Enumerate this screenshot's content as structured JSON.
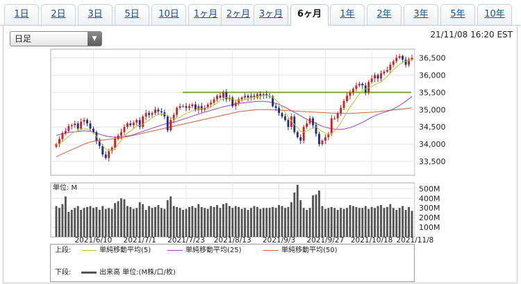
{
  "tabs": [
    "1日",
    "2日",
    "3日",
    "5日",
    "10日",
    "1ヶ月",
    "2ヶ月",
    "3ヶ月",
    "6ヶ月",
    "1年",
    "2年",
    "3年",
    "5年",
    "10年"
  ],
  "active_tab": "6ヶ月",
  "period_select": {
    "value": "日足"
  },
  "timestamp": "21/11/08 16:20 EST",
  "legend": {
    "upper_label": "上段:",
    "lower_label": "下段:",
    "ma5": "単純移動平均(5)",
    "ma25": "単純移動平均(25)",
    "ma50": "単純移動平均(50)",
    "volume": "出来高 単位:(M株/口/枚)"
  },
  "colors": {
    "up": "#d42020",
    "down": "#1e2f8a",
    "ma5": "#b5c832",
    "ma25": "#9c3ec0",
    "ma50": "#d2603b",
    "hline": "#7aa82e",
    "volume": "#555555"
  },
  "chart_data": {
    "type": "candlestick",
    "price_ylim": [
      33100,
      36750
    ],
    "price_ticks": [
      33500,
      34000,
      34500,
      35000,
      35500,
      36000,
      36500
    ],
    "reference_line": 35500,
    "x_labels": [
      {
        "i": 12,
        "label": "2021/6/10"
      },
      {
        "i": 27,
        "label": "2021/7/1"
      },
      {
        "i": 42,
        "label": "2021/7/23"
      },
      {
        "i": 57,
        "label": "2021/8/13"
      },
      {
        "i": 72,
        "label": "2021/9/3"
      },
      {
        "i": 87,
        "label": "2021/9/27"
      },
      {
        "i": 102,
        "label": "2021/10/18"
      },
      {
        "i": 116,
        "label": "2021/11/8"
      }
    ],
    "close": [
      34000,
      34150,
      34320,
      34380,
      34520,
      34550,
      34600,
      34450,
      34650,
      34700,
      34600,
      34450,
      34350,
      34100,
      33950,
      33700,
      33600,
      33800,
      33900,
      34150,
      34250,
      34350,
      34500,
      34600,
      34550,
      34620,
      34700,
      34500,
      34800,
      34900,
      34850,
      34900,
      35000,
      34950,
      34920,
      34800,
      34400,
      34700,
      34850,
      35050,
      35100,
      35100,
      35050,
      35100,
      35150,
      34990,
      35100,
      35000,
      35050,
      35150,
      35200,
      35300,
      35400,
      35350,
      35500,
      35300,
      35350,
      35100,
      35200,
      35300,
      35350,
      35400,
      35350,
      35400,
      35350,
      35450,
      35400,
      35450,
      35400,
      35380,
      35100,
      35050,
      34900,
      34800,
      34700,
      34500,
      34800,
      34350,
      34200,
      34100,
      34500,
      34600,
      34750,
      34550,
      34300,
      34000,
      34100,
      34200,
      34300,
      34750,
      34750,
      34900,
      35050,
      35250,
      35400,
      35500,
      35600,
      35700,
      35750,
      35700,
      35500,
      35800,
      35900,
      36000,
      35900,
      36050,
      36100,
      36150,
      36300,
      36400,
      36500,
      36550,
      36450,
      36300,
      36450,
      36500
    ],
    "ma5": [
      33980,
      34010,
      34070,
      34150,
      34230,
      34300,
      34360,
      34390,
      34420,
      34450,
      34440,
      34400,
      34330,
      34230,
      34090,
      33960,
      33860,
      33800,
      33820,
      33870,
      34000,
      34100,
      34240,
      34320,
      34380,
      34450,
      34520,
      34550,
      34580,
      34640,
      34700,
      34760,
      34820,
      34860,
      34880,
      34870,
      34820,
      34780,
      34730,
      34740,
      34780,
      34840,
      34890,
      34920,
      34960,
      35000,
      35020,
      35030,
      35050,
      35060,
      35080,
      35130,
      35200,
      35270,
      35320,
      35350,
      35330,
      35310,
      35280,
      35270,
      35260,
      35290,
      35320,
      35340,
      35360,
      35380,
      35390,
      35410,
      35410,
      35400,
      35350,
      35280,
      35190,
      35070,
      34920,
      34780,
      34680,
      34570,
      34480,
      34380,
      34350,
      34380,
      34430,
      34470,
      34500,
      34430,
      34370,
      34320,
      34280,
      34310,
      34380,
      34490,
      34620,
      34780,
      34930,
      35080,
      35200,
      35330,
      35450,
      35550,
      35600,
      35630,
      35670,
      35720,
      35770,
      35800,
      35880,
      35960,
      36050,
      36150,
      36230,
      36310,
      36370,
      36400,
      36420,
      36440
    ],
    "ma25": [
      34250,
      34280,
      34300,
      34320,
      34340,
      34350,
      34360,
      34370,
      34380,
      34390,
      34380,
      34370,
      34350,
      34320,
      34290,
      34260,
      34240,
      34220,
      34210,
      34200,
      34210,
      34220,
      34230,
      34240,
      34250,
      34280,
      34310,
      34340,
      34370,
      34400,
      34430,
      34460,
      34490,
      34520,
      34550,
      34580,
      34600,
      34620,
      34640,
      34660,
      34690,
      34720,
      34750,
      34780,
      34810,
      34840,
      34870,
      34900,
      34930,
      34950,
      34980,
      35010,
      35030,
      35060,
      35080,
      35100,
      35120,
      35140,
      35160,
      35180,
      35190,
      35200,
      35210,
      35220,
      35230,
      35240,
      35240,
      35240,
      35230,
      35220,
      35200,
      35180,
      35150,
      35110,
      35070,
      35020,
      34970,
      34920,
      34870,
      34820,
      34770,
      34720,
      34680,
      34640,
      34600,
      34560,
      34520,
      34490,
      34470,
      34450,
      34440,
      34430,
      34430,
      34440,
      34460,
      34480,
      34510,
      34550,
      34590,
      34630,
      34680,
      34730,
      34780,
      34820,
      34860,
      34890,
      34920,
      34950,
      34980,
      35020,
      35070,
      35120,
      35180,
      35240,
      35310,
      35380
    ],
    "ma50": [
      33630,
      33680,
      33720,
      33760,
      33800,
      33840,
      33880,
      33920,
      33960,
      34000,
      34030,
      34060,
      34080,
      34100,
      34110,
      34120,
      34130,
      34140,
      34150,
      34160,
      34170,
      34180,
      34200,
      34220,
      34240,
      34260,
      34280,
      34300,
      34320,
      34340,
      34360,
      34380,
      34400,
      34420,
      34440,
      34460,
      34480,
      34500,
      34520,
      34540,
      34560,
      34580,
      34600,
      34620,
      34640,
      34660,
      34680,
      34700,
      34720,
      34740,
      34760,
      34780,
      34800,
      34820,
      34840,
      34860,
      34880,
      34900,
      34920,
      34940,
      34950,
      34960,
      34970,
      34980,
      34990,
      35000,
      35000,
      35000,
      35000,
      35000,
      34995,
      34990,
      34985,
      34980,
      34975,
      34970,
      34965,
      34960,
      34955,
      34950,
      34945,
      34940,
      34935,
      34930,
      34925,
      34920,
      34915,
      34910,
      34905,
      34900,
      34895,
      34890,
      34890,
      34890,
      34890,
      34890,
      34895,
      34900,
      34905,
      34910,
      34915,
      34920,
      34925,
      34930,
      34940,
      34950,
      34960,
      34970,
      34980,
      34990,
      35000,
      35010,
      35020,
      35030,
      35040,
      35050
    ],
    "volume_ylim": [
      0,
      560
    ],
    "volume_ticks": [
      100,
      200,
      300,
      400,
      500
    ],
    "volume": [
      320,
      300,
      340,
      420,
      260,
      280,
      300,
      320,
      280,
      300,
      310,
      320,
      300,
      310,
      280,
      320,
      290,
      300,
      290,
      350,
      370,
      400,
      390,
      320,
      310,
      290,
      300,
      360,
      340,
      280,
      320,
      300,
      310,
      330,
      300,
      290,
      380,
      420,
      320,
      310,
      300,
      280,
      290,
      310,
      320,
      300,
      340,
      310,
      300,
      290,
      320,
      310,
      330,
      300,
      340,
      350,
      320,
      300,
      320,
      310,
      290,
      300,
      280,
      300,
      320,
      310,
      290,
      300,
      300,
      300,
      310,
      300,
      330,
      320,
      300,
      310,
      360,
      460,
      540,
      380,
      300,
      280,
      300,
      430,
      440,
      480,
      320,
      290,
      300,
      310,
      300,
      280,
      300,
      290,
      300,
      330,
      320,
      310,
      300,
      300,
      320,
      290,
      310,
      300,
      320,
      330,
      300,
      310,
      340,
      300,
      280,
      300,
      320,
      280,
      310,
      270
    ]
  }
}
